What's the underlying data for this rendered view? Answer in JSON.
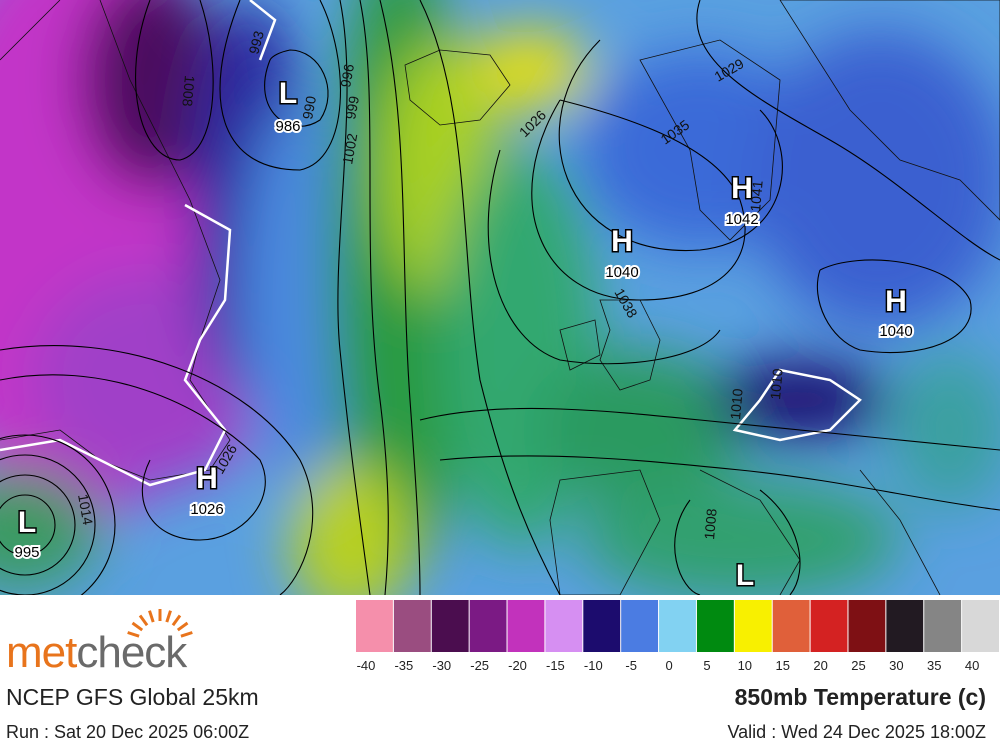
{
  "map": {
    "pressure_centers": [
      {
        "symbol": "L",
        "value": "986"
      },
      {
        "symbol": "H",
        "value": "1042"
      },
      {
        "symbol": "H",
        "value": "1040"
      },
      {
        "symbol": "H",
        "value": "1040"
      },
      {
        "symbol": "H",
        "value": "1026"
      },
      {
        "symbol": "L",
        "value": "995"
      },
      {
        "symbol": "L"
      }
    ],
    "isobar_labels": [
      "1008",
      "993",
      "990",
      "996",
      "999",
      "1002",
      "1026",
      "1029",
      "1035",
      "1041",
      "1038",
      "1026",
      "1014",
      "1008",
      "1010",
      "1010"
    ]
  },
  "legend": {
    "labels": [
      -40,
      -35,
      -30,
      -25,
      -20,
      -15,
      -10,
      -5,
      0,
      5,
      10,
      15,
      20,
      25,
      30,
      35,
      40
    ],
    "colors": [
      "#f58fab",
      "#9a4d80",
      "#4b0d4f",
      "#7b1a84",
      "#c232bc",
      "#d68ff2",
      "#1c0c6e",
      "#4b7ce2",
      "#82d2f2",
      "#008a10",
      "#f8f000",
      "#e0603a",
      "#d42222",
      "#7e1014",
      "#221a22",
      "#858585",
      "#d8d8d8"
    ]
  },
  "footer": {
    "brand": {
      "prefix": "met",
      "suffix": "check"
    },
    "model": "NCEP GFS Global 25km",
    "run": "Run : Sat 20 Dec 2025 06:00Z",
    "title": "850mb Temperature (c)",
    "valid": "Valid : Wed 24 Dec 2025 18:00Z"
  }
}
